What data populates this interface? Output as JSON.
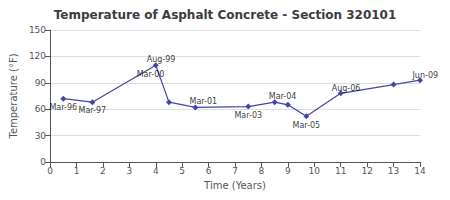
{
  "chart_data": {
    "type": "line",
    "title": "Temperature of Asphalt Concrete - Section 320101",
    "xlabel": "Time (Years)",
    "ylabel": "Temperature (°F)",
    "x": [
      0.5,
      1.6,
      4.0,
      4.5,
      5.5,
      7.5,
      8.5,
      9.0,
      9.7,
      11.0,
      13.0,
      14.0
    ],
    "values": [
      72,
      68,
      110,
      68,
      62,
      63,
      68,
      65,
      52,
      78,
      88,
      93
    ],
    "color": "#4444AA",
    "marker": "diamond",
    "xlim": [
      0,
      14
    ],
    "ylim": [
      0,
      150
    ],
    "xticks": [
      0,
      1,
      2,
      3,
      4,
      5,
      6,
      7,
      8,
      9,
      10,
      11,
      12,
      13,
      14
    ],
    "yticks": [
      0,
      30,
      60,
      90,
      120,
      150
    ],
    "grid": true,
    "annotations": [
      {
        "text": "Mar-96",
        "x": 0.5,
        "y": 62
      },
      {
        "text": "Mar-97",
        "x": 1.6,
        "y": 58
      },
      {
        "text": "Aug-99",
        "x": 4.2,
        "y": 116
      },
      {
        "text": "Mar-00",
        "x": 3.8,
        "y": 100
      },
      {
        "text": "Mar-01",
        "x": 5.8,
        "y": 69
      },
      {
        "text": "Mar-03",
        "x": 7.5,
        "y": 53
      },
      {
        "text": "Mar-04",
        "x": 8.8,
        "y": 74
      },
      {
        "text": "Mar-05",
        "x": 9.7,
        "y": 42
      },
      {
        "text": "Aug-06",
        "x": 11.2,
        "y": 84
      },
      {
        "text": "Jun-09",
        "x": 14.2,
        "y": 98
      }
    ]
  }
}
